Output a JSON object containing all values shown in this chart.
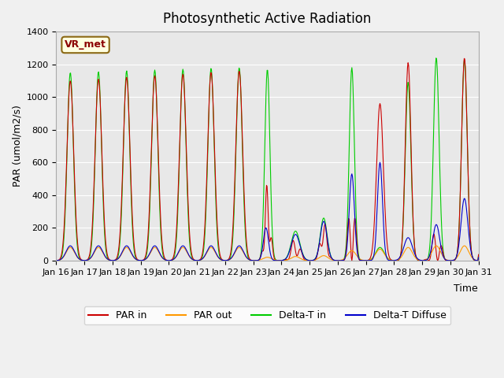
{
  "title": "Photosynthetic Active Radiation",
  "xlabel": "Time",
  "ylabel": "PAR (umol/m2/s)",
  "ylim": [
    0,
    1400
  ],
  "annotation_text": "VR_met",
  "legend_labels": [
    "PAR in",
    "PAR out",
    "Delta-T in",
    "Delta-T Diffuse"
  ],
  "line_colors": [
    "#cc0000",
    "#ff9900",
    "#00cc00",
    "#0000cc"
  ],
  "tick_labels": [
    "Jan 16",
    "Jan 17",
    "Jan 18",
    "Jan 19",
    "Jan 20",
    "Jan 21",
    "Jan 22",
    "Jan 23",
    "Jan 24",
    "Jan 25",
    "Jan 26",
    "Jan 27",
    "Jan 28",
    "Jan 29",
    "Jan 30",
    "Jan 31"
  ],
  "bg_color": "#f0f0f0",
  "plot_bg_color": "#e8e8e8",
  "days": 15,
  "points_per_day": 48
}
